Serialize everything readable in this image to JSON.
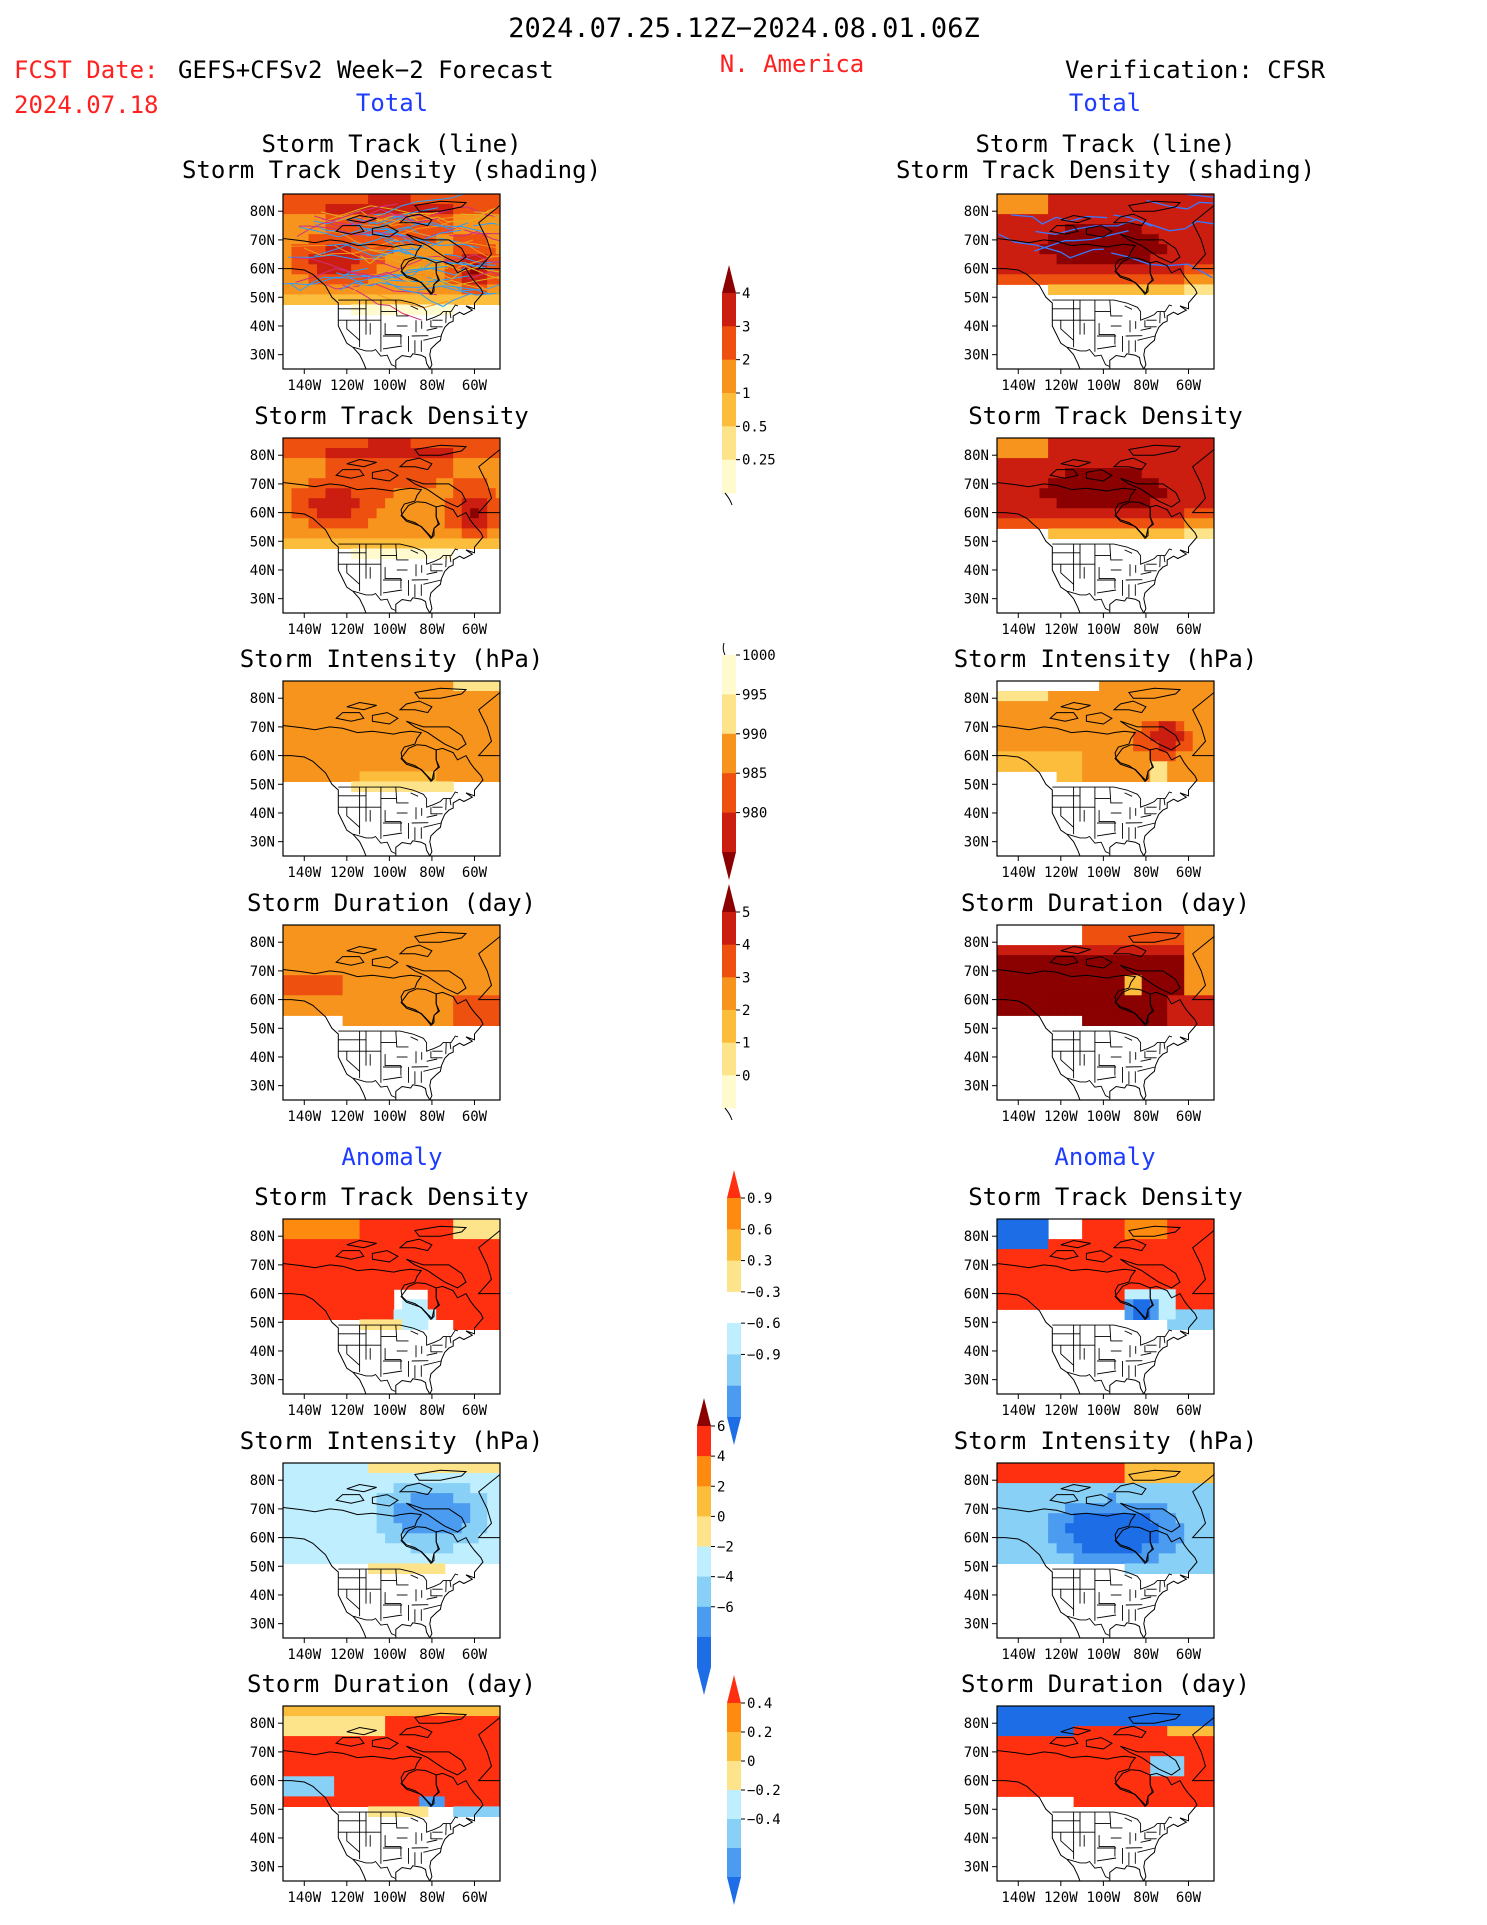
{
  "header": {
    "period": "2024.07.25.12Z−2024.08.01.06Z",
    "fcst_date_label": "FCST Date:",
    "fcst_model": "GEFS+CFSv2 Week−2 Forecast",
    "region": "N. America",
    "fcst_date_value": "2024.07.18",
    "verification": "Verification: CFSR",
    "total_left": "Total",
    "total_right": "Total",
    "anomaly_left": "Anomaly",
    "anomaly_right": "Anomaly"
  },
  "colors": {
    "text": "#000000",
    "red_text": "#ff2020",
    "blue_text": "#1e3cff",
    "land_edge": "#000000"
  },
  "axes": {
    "lat_ticks": [
      "80N",
      "70N",
      "60N",
      "50N",
      "40N",
      "30N"
    ],
    "lon_ticks": [
      "140W",
      "120W",
      "100W",
      "80W",
      "60W"
    ]
  },
  "chart_data": [
    {
      "type": "heatmap",
      "title_lines": [
        "Storm Track (line)",
        "Storm Track Density (shading)"
      ],
      "side": "forecast",
      "section": "total",
      "scale": "density",
      "field": "density_fcst",
      "tracks": "mixed"
    },
    {
      "type": "heatmap",
      "title_lines": [
        "Storm Track (line)",
        "Storm Track Density (shading)"
      ],
      "side": "verification",
      "section": "total",
      "scale": "density",
      "field": "density_obs",
      "tracks": "blue"
    },
    {
      "type": "heatmap",
      "title_lines": [
        "Storm Track Density"
      ],
      "side": "forecast",
      "section": "total",
      "scale": "density",
      "field": "density_fcst"
    },
    {
      "type": "heatmap",
      "title_lines": [
        "Storm Track Density"
      ],
      "side": "verification",
      "section": "total",
      "scale": "density",
      "field": "density_obs"
    },
    {
      "type": "heatmap",
      "title_lines": [
        "Storm Intensity (hPa)"
      ],
      "side": "forecast",
      "section": "total",
      "scale": "intensity",
      "field": "intensity_fcst"
    },
    {
      "type": "heatmap",
      "title_lines": [
        "Storm Intensity (hPa)"
      ],
      "side": "verification",
      "section": "total",
      "scale": "intensity",
      "field": "intensity_obs"
    },
    {
      "type": "heatmap",
      "title_lines": [
        "Storm Duration (day)"
      ],
      "side": "forecast",
      "section": "total",
      "scale": "duration",
      "field": "duration_fcst"
    },
    {
      "type": "heatmap",
      "title_lines": [
        "Storm Duration (day)"
      ],
      "side": "verification",
      "section": "total",
      "scale": "duration",
      "field": "duration_obs"
    },
    {
      "type": "heatmap",
      "title_lines": [
        "Storm Track Density"
      ],
      "side": "forecast",
      "section": "anomaly",
      "scale": "density_anom",
      "field": "density_anom_fcst"
    },
    {
      "type": "heatmap",
      "title_lines": [
        "Storm Track Density"
      ],
      "side": "verification",
      "section": "anomaly",
      "scale": "density_anom",
      "field": "density_anom_obs"
    },
    {
      "type": "heatmap",
      "title_lines": [
        "Storm Intensity (hPa)"
      ],
      "side": "forecast",
      "section": "anomaly",
      "scale": "intensity_anom",
      "field": "intensity_anom_fcst"
    },
    {
      "type": "heatmap",
      "title_lines": [
        "Storm Intensity (hPa)"
      ],
      "side": "verification",
      "section": "anomaly",
      "scale": "intensity_anom",
      "field": "intensity_anom_obs"
    },
    {
      "type": "heatmap",
      "title_lines": [
        "Storm Duration (day)"
      ],
      "side": "forecast",
      "section": "anomaly",
      "scale": "duration_anom",
      "field": "duration_anom_fcst"
    },
    {
      "type": "heatmap",
      "title_lines": [
        "Storm Duration (day)"
      ],
      "side": "verification",
      "section": "anomaly",
      "scale": "duration_anom",
      "field": "duration_anom_obs"
    }
  ],
  "colorbars": [
    {
      "name": "density",
      "labels": [
        "4",
        "3",
        "2",
        "1",
        "0.5",
        "0.25"
      ],
      "colors": [
        "#8b0000",
        "#cc1e10",
        "#ee5010",
        "#f7941d",
        "#fcbc3c",
        "#fde38a",
        "#fffbcf"
      ],
      "tail": "bottom"
    },
    {
      "name": "intensity",
      "labels": [
        "1000",
        "995",
        "990",
        "985",
        "980"
      ],
      "colors": [
        "#fffbcf",
        "#fde38a",
        "#f7941d",
        "#ee5010",
        "#cc1e10",
        "#8b0000"
      ],
      "tail": "top"
    },
    {
      "name": "duration",
      "labels": [
        "5",
        "4",
        "3",
        "2",
        "1",
        "0"
      ],
      "colors": [
        "#8b0000",
        "#cc1e10",
        "#ee5010",
        "#f7941d",
        "#fcbc3c",
        "#fde38a",
        "#fffbcf"
      ],
      "tail": "bottom"
    },
    {
      "name": "density_anom",
      "labels": [
        "0.9",
        "0.6",
        "0.3",
        "−0.3",
        "−0.6",
        "−0.9"
      ],
      "colors": [
        "#ff3010",
        "#ff8a10",
        "#fcbc3c",
        "#fde38a",
        "#ffffff",
        "#bfeeff",
        "#89d0f7",
        "#4b9cf0",
        "#1d6ee6"
      ]
    },
    {
      "name": "intensity_anom",
      "labels": [
        "6",
        "4",
        "2",
        "0",
        "−2",
        "−4",
        "−6"
      ],
      "colors": [
        "#8b0000",
        "#ff3010",
        "#ff8a10",
        "#fcbc3c",
        "#fde38a",
        "#bfeeff",
        "#89d0f7",
        "#4b9cf0",
        "#1d6ee6",
        "#1d6ee6"
      ]
    },
    {
      "name": "duration_anom",
      "labels": [
        "0.4",
        "0.2",
        "0",
        "−0.2",
        "−0.4"
      ],
      "colors": [
        "#ff3010",
        "#ff8a10",
        "#fcbc3c",
        "#fde38a",
        "#bfeeff",
        "#89d0f7",
        "#4b9cf0",
        "#1d6ee6"
      ]
    }
  ]
}
